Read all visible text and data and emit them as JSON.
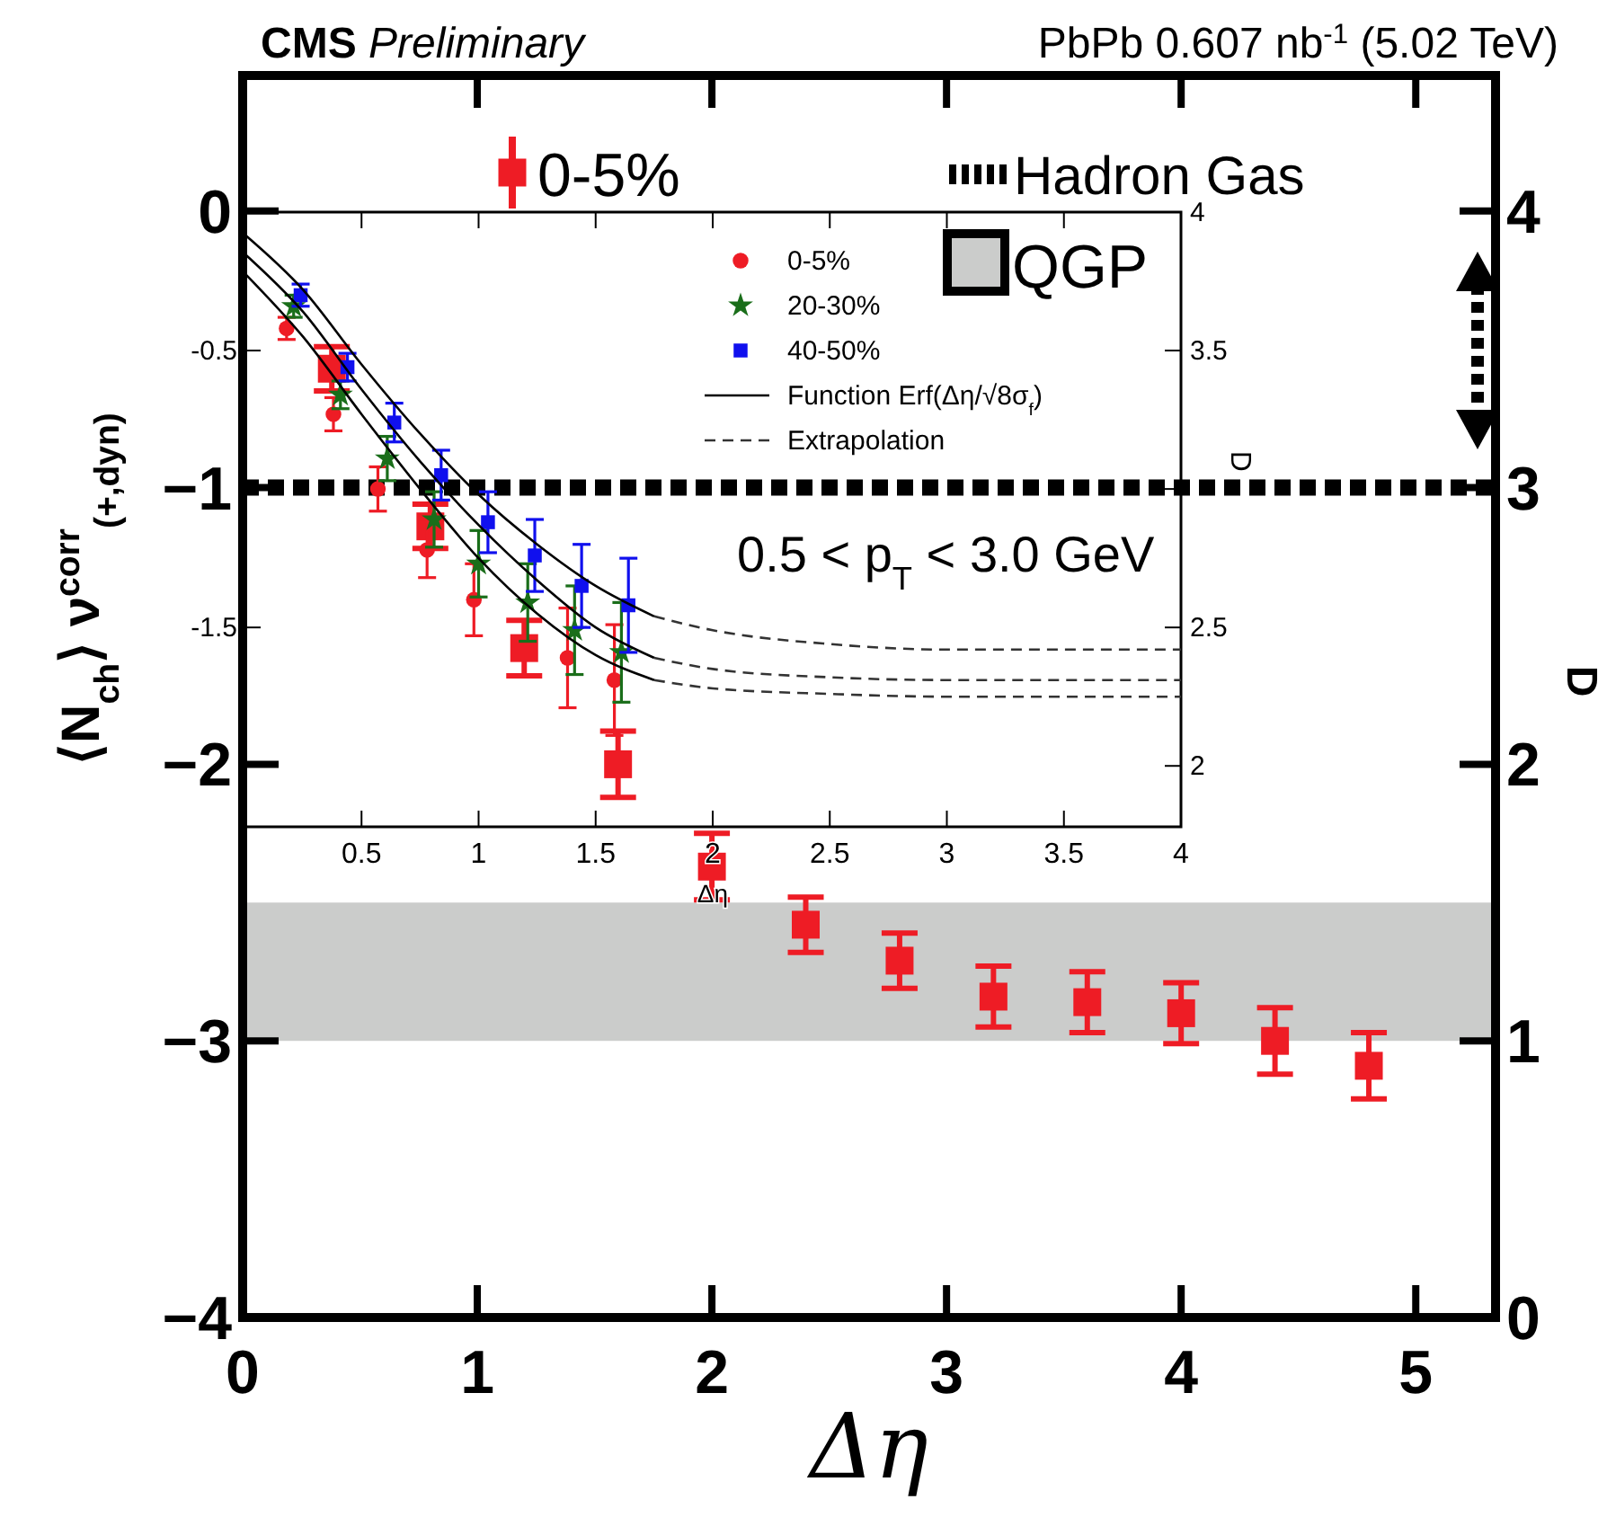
{
  "chart_data": [
    {
      "type": "scatter",
      "title": "CMS Preliminary",
      "subtitle": "PbPb 0.607 nb$^{-1}$ (5.02 TeV)",
      "xlabel": "Δη",
      "ylabel": "⟨N$_{ch}$⟩ ν$^{corr}$$_{(+,dyn)}$",
      "y2label": "D",
      "xlim": [
        0,
        5.34
      ],
      "xticks": [
        0,
        1,
        2,
        3,
        4,
        5
      ],
      "ylim": [
        -4,
        0.49
      ],
      "yticks": [
        {
          "value": -4,
          "label": "−4"
        },
        {
          "value": -3,
          "label": "−3"
        },
        {
          "value": -2,
          "label": "−2"
        },
        {
          "value": -1,
          "label": "−1"
        },
        0
      ],
      "y2lim": [
        0,
        4.49
      ],
      "y2ticks": [
        0,
        1,
        2,
        3,
        4
      ],
      "legend": "top",
      "marker": "square",
      "ref_lines": [
        {
          "axis": "y",
          "value": -1,
          "label": "Hadron Gas",
          "color": "#000000",
          "line_style": "dashed"
        }
      ],
      "bands": [
        {
          "axis": "y",
          "from": -3,
          "to": -2.5,
          "label": "QGP",
          "color": "#cbcccb"
        }
      ],
      "annotations": [
        "0.5 < p$_{T}$ < 3.0 GeV"
      ],
      "series": [
        {
          "name": "0-5%",
          "color": "#ee1c25",
          "x": [
            0.38,
            0.8,
            1.2,
            1.6,
            2.0,
            2.4,
            2.8,
            3.2,
            3.6,
            4.0,
            4.4,
            4.8
          ],
          "values": [
            -0.57,
            -1.14,
            -1.58,
            -2.0,
            -2.37,
            -2.58,
            -2.71,
            -2.84,
            -2.86,
            -2.9,
            -3.0,
            -3.09
          ],
          "errors": [
            0.08,
            0.08,
            0.1,
            0.12,
            0.12,
            0.1,
            0.1,
            0.11,
            0.11,
            0.11,
            0.12,
            0.12
          ]
        }
      ]
    },
    {
      "type": "scatter",
      "xlabel": "Δη",
      "y2label": "D",
      "xlim": [
        0,
        4
      ],
      "xticks": [
        0.5,
        1,
        1.5,
        2,
        2.5,
        3,
        3.5,
        4
      ],
      "ylim": [
        -2.22,
        0
      ],
      "yticks": [
        {
          "value": -2,
          "label": null
        },
        -1.5,
        {
          "value": -1,
          "label": null
        },
        -0.5,
        {
          "value": 0,
          "label": null
        }
      ],
      "y2lim": [
        1.78,
        4
      ],
      "y2ticks": [
        2,
        2.5,
        {
          "value": 3,
          "label": null
        },
        3.5,
        4
      ],
      "legend": "top right",
      "series": [
        {
          "name": "0-5%",
          "color": "#ee1c25",
          "marker": "circle",
          "x": [
            0.18,
            0.38,
            0.57,
            0.78,
            0.98,
            1.38,
            1.58
          ],
          "values": [
            -0.42,
            -0.73,
            -1.0,
            -1.22,
            -1.4,
            -1.61,
            -1.69
          ],
          "errors": [
            0.04,
            0.06,
            0.08,
            0.1,
            0.13,
            0.18,
            0.2
          ]
        },
        {
          "name": "20-30%",
          "color": "#1a6e1a",
          "marker": "star",
          "x": [
            0.21,
            0.41,
            0.61,
            0.81,
            1.0,
            1.21,
            1.41,
            1.61
          ],
          "values": [
            -0.34,
            -0.66,
            -0.89,
            -1.11,
            -1.27,
            -1.41,
            -1.51,
            -1.59
          ],
          "errors": [
            0.04,
            0.05,
            0.08,
            0.1,
            0.12,
            0.14,
            0.16,
            0.18
          ]
        },
        {
          "name": "40-50%",
          "color": "#1010ee",
          "marker": "square",
          "x": [
            0.24,
            0.44,
            0.64,
            0.84,
            1.04,
            1.24,
            1.44,
            1.64
          ],
          "values": [
            -0.3,
            -0.56,
            -0.76,
            -0.95,
            -1.12,
            -1.24,
            -1.35,
            -1.42
          ],
          "errors": [
            0.04,
            0.05,
            0.07,
            0.09,
            0.11,
            0.13,
            0.15,
            0.17
          ]
        },
        {
          "name": "Function Erf(Δη/√8σ$_{f}$)",
          "type": "line",
          "color": "#000000",
          "line_style": "solid",
          "x": [
            0,
            0.25,
            0.5,
            0.75,
            1,
            1.25,
            1.5,
            1.75
          ],
          "values": [
            -0.08,
            -0.28,
            -0.55,
            -0.8,
            -1.02,
            -1.2,
            -1.35,
            -1.46
          ]
        },
        {
          "type": "line",
          "color": "#000000",
          "line_style": "solid",
          "x": [
            0,
            0.25,
            0.5,
            0.75,
            1,
            1.25,
            1.5,
            1.75
          ],
          "values": [
            -0.15,
            -0.36,
            -0.64,
            -0.9,
            -1.13,
            -1.33,
            -1.5,
            -1.61
          ]
        },
        {
          "type": "line",
          "color": "#000000",
          "line_style": "solid",
          "x": [
            0,
            0.25,
            0.5,
            0.75,
            1,
            1.25,
            1.5,
            1.75
          ],
          "values": [
            -0.22,
            -0.45,
            -0.73,
            -1.0,
            -1.25,
            -1.45,
            -1.6,
            -1.69
          ]
        },
        {
          "name": "Extrapolation",
          "type": "line",
          "color": "#333333",
          "line_style": "dashed",
          "x": [
            1.75,
            2,
            2.5,
            3,
            3.5,
            4
          ],
          "values": [
            -1.46,
            -1.51,
            -1.56,
            -1.58,
            -1.58,
            -1.58
          ]
        },
        {
          "type": "line",
          "color": "#333333",
          "line_style": "dashed",
          "x": [
            1.75,
            2,
            2.5,
            3,
            3.5,
            4
          ],
          "values": [
            -1.61,
            -1.65,
            -1.68,
            -1.69,
            -1.69,
            -1.69
          ]
        },
        {
          "type": "line",
          "color": "#333333",
          "line_style": "dashed",
          "x": [
            1.75,
            2,
            2.5,
            3,
            3.5,
            4
          ],
          "values": [
            -1.69,
            -1.72,
            -1.74,
            -1.75,
            -1.75,
            -1.75
          ]
        }
      ]
    }
  ]
}
